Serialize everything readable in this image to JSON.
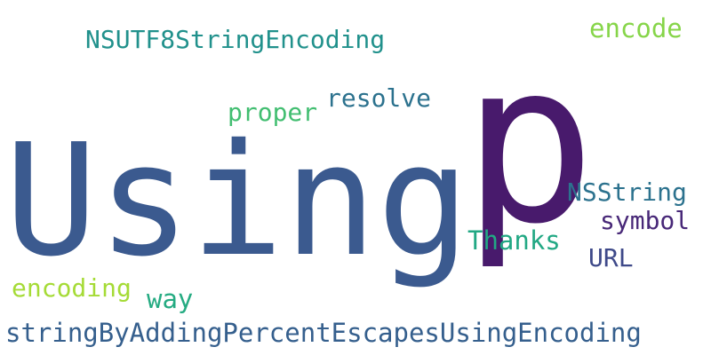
{
  "words": [
    {
      "text": "p",
      "color": "#481a6c"
    },
    {
      "text": "Using",
      "color": "#3b5a8f"
    },
    {
      "text": "NSUTF8StringEncoding",
      "color": "#21918c"
    },
    {
      "text": "encode",
      "color": "#86d549"
    },
    {
      "text": "resolve",
      "color": "#2c728e"
    },
    {
      "text": "proper",
      "color": "#42be71"
    },
    {
      "text": "NSString",
      "color": "#2c728e"
    },
    {
      "text": "symbol",
      "color": "#482878"
    },
    {
      "text": "Thanks",
      "color": "#22a884"
    },
    {
      "text": "URL",
      "color": "#3e4989"
    },
    {
      "text": "encoding",
      "color": "#a5db36"
    },
    {
      "text": "way",
      "color": "#25ab82"
    },
    {
      "text": "stringByAddingPercentEscapesUsingEncoding",
      "color": "#355f8d"
    }
  ]
}
